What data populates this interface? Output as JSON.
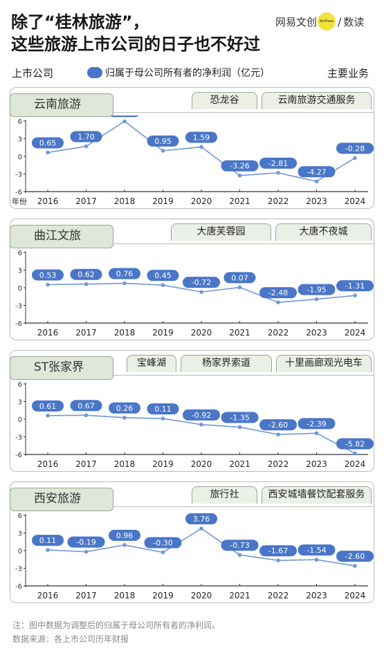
{
  "title": {
    "line1": "除了“桂林旅游”，",
    "line2": "这些旅游上市公司的日子也不好过"
  },
  "logo": {
    "name": "网易文创",
    "badge": "NetEase",
    "sub": "数读"
  },
  "legend": {
    "left": "上市公司",
    "series": "归属于母公司所有者的净利润（亿元）",
    "right": "主要业务"
  },
  "year_axis_label": "年份",
  "colors": {
    "line": "#6f98d8",
    "label_bg": "#4a76c8",
    "tab_bg": "#dfe7d9",
    "axis": "#333333"
  },
  "chart_data": [
    {
      "type": "line",
      "company": "云南旅游",
      "businesses": [
        "恐龙谷",
        "云南旅游交通服务"
      ],
      "x": [
        "2016",
        "2017",
        "2018",
        "2019",
        "2020",
        "2021",
        "2022",
        "2023",
        "2024"
      ],
      "series": [
        {
          "values": [
            0.65,
            1.7,
            5.97,
            0.95,
            1.59,
            -3.26,
            -2.81,
            -4.27,
            -0.28
          ]
        }
      ],
      "labels": [
        "0.65",
        "1.70",
        "5.97",
        "0.95",
        "1.59",
        "-3.26",
        "-2.81",
        "-4.27",
        "-0.28"
      ],
      "y_ticks": [
        "6",
        "3",
        "0",
        "-3",
        "-6"
      ],
      "ylim": [
        -6,
        6
      ]
    },
    {
      "type": "line",
      "company": "曲江文旅",
      "businesses": [
        "大唐芙蓉园",
        "大唐不夜城"
      ],
      "x": [
        "2016",
        "2017",
        "2018",
        "2019",
        "2020",
        "2021",
        "2022",
        "2023",
        "2024"
      ],
      "series": [
        {
          "values": [
            0.53,
            0.62,
            0.76,
            0.45,
            -0.72,
            0.07,
            -2.48,
            -1.95,
            -1.31
          ]
        }
      ],
      "labels": [
        "0.53",
        "0.62",
        "0.76",
        "0.45",
        "-0.72",
        "0.07",
        "-2.48",
        "-1.95",
        "-1.31"
      ],
      "y_ticks": [
        "6",
        "3",
        "0",
        "-3",
        "-6"
      ],
      "ylim": [
        -6,
        6
      ]
    },
    {
      "type": "line",
      "company": "ST张家界",
      "businesses": [
        "宝峰湖",
        "杨家界索道",
        "十里画廊观光电车"
      ],
      "x": [
        "2016",
        "2017",
        "2018",
        "2019",
        "2020",
        "2021",
        "2022",
        "2023",
        "2024"
      ],
      "series": [
        {
          "values": [
            0.61,
            0.67,
            0.26,
            0.11,
            -0.92,
            -1.35,
            -2.6,
            -2.39,
            -5.82
          ]
        }
      ],
      "labels": [
        "0.61",
        "0.67",
        "0.26",
        "0.11",
        "-0.92",
        "-1.35",
        "-2.60",
        "-2.39",
        "-5.82"
      ],
      "y_ticks": [
        "6",
        "3",
        "0",
        "-3",
        "-6"
      ],
      "ylim": [
        -6,
        6
      ]
    },
    {
      "type": "line",
      "company": "西安旅游",
      "businesses": [
        "旅行社",
        "西安城墙餐饮配套服务"
      ],
      "x": [
        "2016",
        "2017",
        "2018",
        "2019",
        "2020",
        "2021",
        "2022",
        "2023",
        "2024"
      ],
      "series": [
        {
          "values": [
            0.11,
            -0.19,
            0.96,
            -0.3,
            3.76,
            -0.73,
            -1.67,
            -1.54,
            -2.6
          ]
        }
      ],
      "labels": [
        "0.11",
        "-0.19",
        "0.96",
        "-0.30",
        "3.76",
        "-0.73",
        "-1.67",
        "-1.54",
        "-2.60"
      ],
      "y_ticks": [
        "6",
        "3",
        "0",
        "-3",
        "-6"
      ],
      "ylim": [
        -6,
        6
      ]
    }
  ],
  "footnote": {
    "note": "注：图中数据为调整后的归属于母公司所有者的净利润。",
    "source": "数据来源：各上市公司历年财报"
  }
}
